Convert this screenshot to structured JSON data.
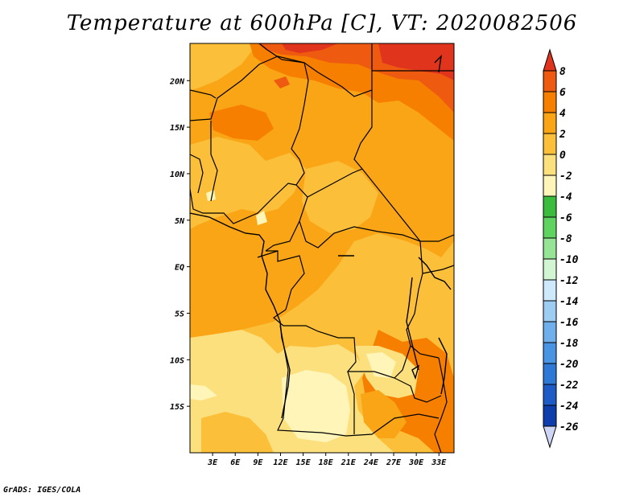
{
  "title": "Temperature at 600hPa [C], VT: 2020082506",
  "credit": "GrADS: IGES/COLA",
  "map": {
    "lon_ticks": [
      "3E",
      "6E",
      "9E",
      "12E",
      "15E",
      "18E",
      "21E",
      "24E",
      "27E",
      "30E",
      "33E"
    ],
    "lat_ticks": [
      "20N",
      "15N",
      "10N",
      "5N",
      "EQ",
      "5S",
      "10S",
      "15S"
    ],
    "lon_range": [
      0,
      35
    ],
    "lat_range": [
      -20,
      24
    ]
  },
  "colorbar": {
    "labels": [
      "8",
      "6",
      "4",
      "2",
      "0",
      "-2",
      "-4",
      "-6",
      "-8",
      "-10",
      "-12",
      "-14",
      "-16",
      "-18",
      "-20",
      "-22",
      "-24",
      "-26"
    ],
    "colors": [
      "#e0341c",
      "#ee5a10",
      "#f77f00",
      "#f9a515",
      "#fbbf3a",
      "#fde07e",
      "#fff5b8",
      "#3cbc3c",
      "#5fd35f",
      "#96e596",
      "#d2f5d2",
      "#cde9fb",
      "#9ecdf3",
      "#6fb0ec",
      "#4a95e3",
      "#2f79d6",
      "#1d5cc7",
      "#0d3eac",
      "#05157b",
      "#cfd6f5"
    ]
  },
  "fields": {
    "base": "#fbbf3a",
    "warm2": "#f9a515",
    "warm4": "#f77f00",
    "warm6": "#ee5a10",
    "warm8": "#e0341c",
    "cool0": "#fde07e",
    "cool2": "#fff5b8"
  }
}
